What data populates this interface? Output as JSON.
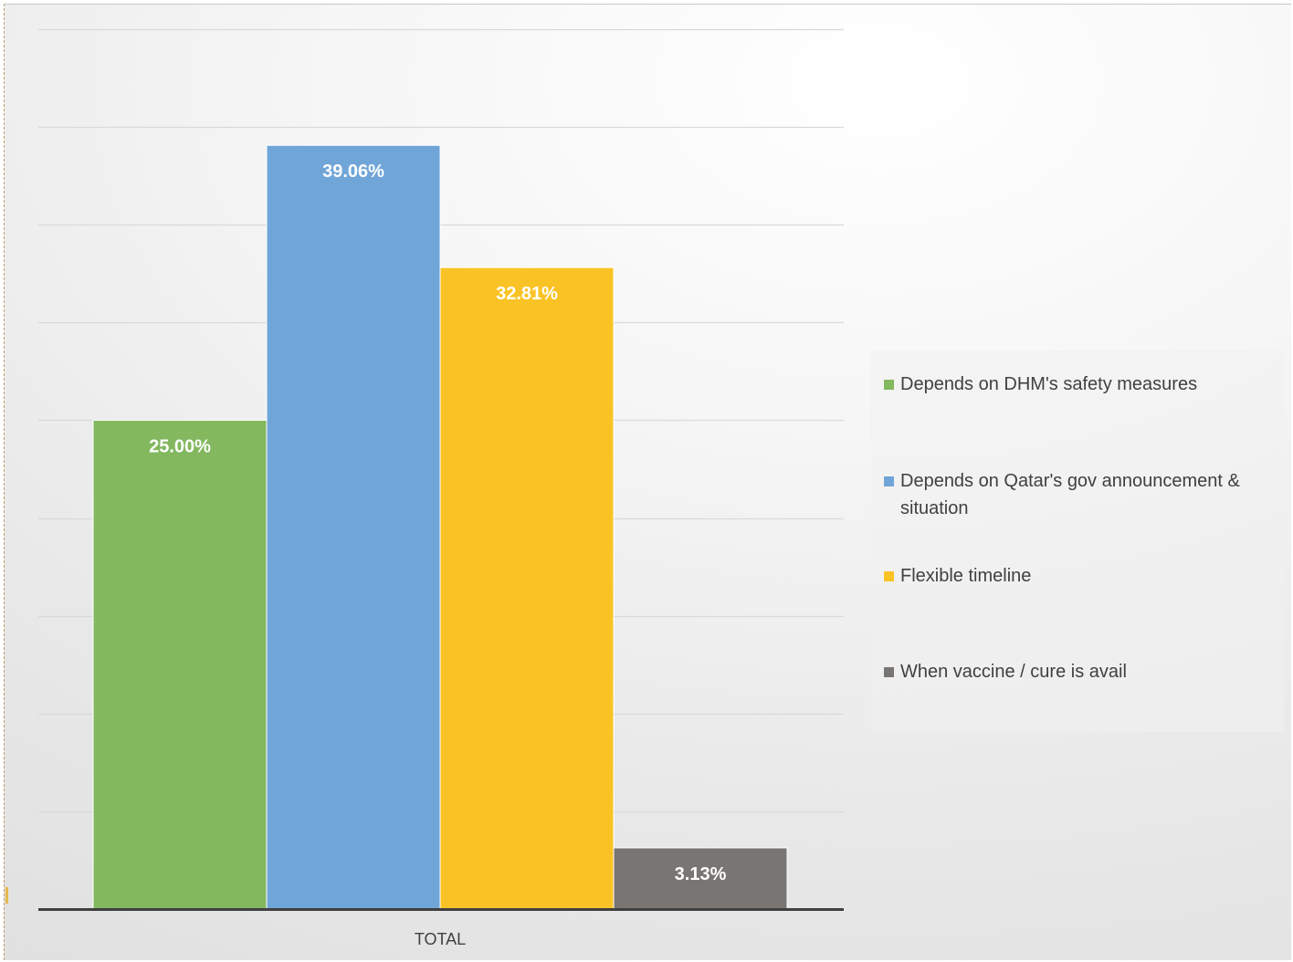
{
  "chart_data": {
    "type": "bar",
    "categories": [
      "TOTAL"
    ],
    "series": [
      {
        "name": "Depends on DHM's safety measures",
        "values": [
          25.0
        ],
        "label": "25.00%",
        "color": "#83b85f"
      },
      {
        "name": "Depends on Qatar's gov announcement & situation",
        "values": [
          39.06
        ],
        "label": "39.06%",
        "color": "#70a5d8"
      },
      {
        "name": "Flexible timeline",
        "values": [
          32.81
        ],
        "label": "32.81%",
        "color": "#fac325"
      },
      {
        "name": "When vaccine / cure is avail",
        "values": [
          3.13
        ],
        "label": "3.13%",
        "color": "#787572"
      }
    ],
    "ylim": [
      0,
      45
    ],
    "y_gridline_step": 5,
    "y_tick_labels_shown": false,
    "grid": true,
    "legend_position": "right",
    "title": "",
    "xlabel": "",
    "ylabel": ""
  },
  "colors": {
    "gridline": "#d9d9d9",
    "axis": "#404040",
    "data_label": "#ffffff",
    "text": "#404040"
  }
}
